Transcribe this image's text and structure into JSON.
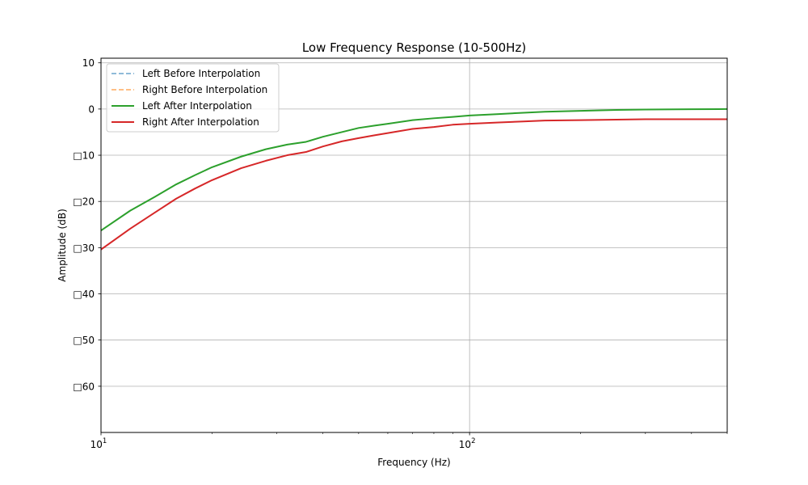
{
  "chart_data": {
    "type": "line",
    "title": "Low Frequency Response (10-500Hz)",
    "xlabel": "Frequency (Hz)",
    "ylabel": "Amplitude (dB)",
    "xscale": "log",
    "xlim": [
      10,
      500
    ],
    "ylim": [
      -70,
      11
    ],
    "grid": true,
    "legend_position": "top-left",
    "x_ticks": [
      {
        "value": 10,
        "base": "10",
        "exp": "1"
      },
      {
        "value": 100,
        "base": "10",
        "exp": "2"
      }
    ],
    "y_ticks": [
      {
        "value": 10,
        "label": "10"
      },
      {
        "value": 0,
        "label": "0"
      },
      {
        "value": -10,
        "label": "□10"
      },
      {
        "value": -20,
        "label": "□20"
      },
      {
        "value": -30,
        "label": "□30"
      },
      {
        "value": -40,
        "label": "□40"
      },
      {
        "value": -50,
        "label": "□50"
      },
      {
        "value": -60,
        "label": "□60"
      }
    ],
    "series": [
      {
        "name": "Left Before Interpolation",
        "color": "#1f77b4",
        "style": "dashed",
        "alpha": 0.5,
        "points": []
      },
      {
        "name": "Right Before Interpolation",
        "color": "#ff7f0e",
        "style": "dashed",
        "alpha": 0.5,
        "points": []
      },
      {
        "name": "Left After Interpolation",
        "color": "#2ca02c",
        "style": "solid",
        "alpha": 1,
        "points": [
          [
            10,
            -26.3
          ],
          [
            12,
            -22.0
          ],
          [
            14,
            -19.0
          ],
          [
            16,
            -16.3
          ],
          [
            18,
            -14.3
          ],
          [
            20,
            -12.6
          ],
          [
            24,
            -10.3
          ],
          [
            28,
            -8.7
          ],
          [
            32,
            -7.7
          ],
          [
            36,
            -7.1
          ],
          [
            40,
            -6.0
          ],
          [
            45,
            -5.0
          ],
          [
            50,
            -4.1
          ],
          [
            55,
            -3.6
          ],
          [
            60,
            -3.2
          ],
          [
            70,
            -2.4
          ],
          [
            80,
            -2.0
          ],
          [
            90,
            -1.7
          ],
          [
            100,
            -1.4
          ],
          [
            120,
            -1.1
          ],
          [
            140,
            -0.8
          ],
          [
            160,
            -0.6
          ],
          [
            200,
            -0.4
          ],
          [
            250,
            -0.2
          ],
          [
            300,
            -0.1
          ],
          [
            400,
            -0.05
          ],
          [
            500,
            0.0
          ]
        ]
      },
      {
        "name": "Right After Interpolation",
        "color": "#d62728",
        "style": "solid",
        "alpha": 1,
        "points": [
          [
            10,
            -30.4
          ],
          [
            12,
            -25.9
          ],
          [
            14,
            -22.4
          ],
          [
            16,
            -19.4
          ],
          [
            18,
            -17.2
          ],
          [
            20,
            -15.4
          ],
          [
            24,
            -12.8
          ],
          [
            28,
            -11.2
          ],
          [
            32,
            -10.0
          ],
          [
            36,
            -9.3
          ],
          [
            40,
            -8.1
          ],
          [
            45,
            -7.0
          ],
          [
            50,
            -6.3
          ],
          [
            55,
            -5.7
          ],
          [
            60,
            -5.2
          ],
          [
            70,
            -4.3
          ],
          [
            80,
            -3.9
          ],
          [
            90,
            -3.4
          ],
          [
            100,
            -3.2
          ],
          [
            120,
            -2.9
          ],
          [
            140,
            -2.7
          ],
          [
            160,
            -2.5
          ],
          [
            200,
            -2.4
          ],
          [
            250,
            -2.3
          ],
          [
            300,
            -2.2
          ],
          [
            400,
            -2.2
          ],
          [
            500,
            -2.2
          ]
        ]
      }
    ]
  }
}
